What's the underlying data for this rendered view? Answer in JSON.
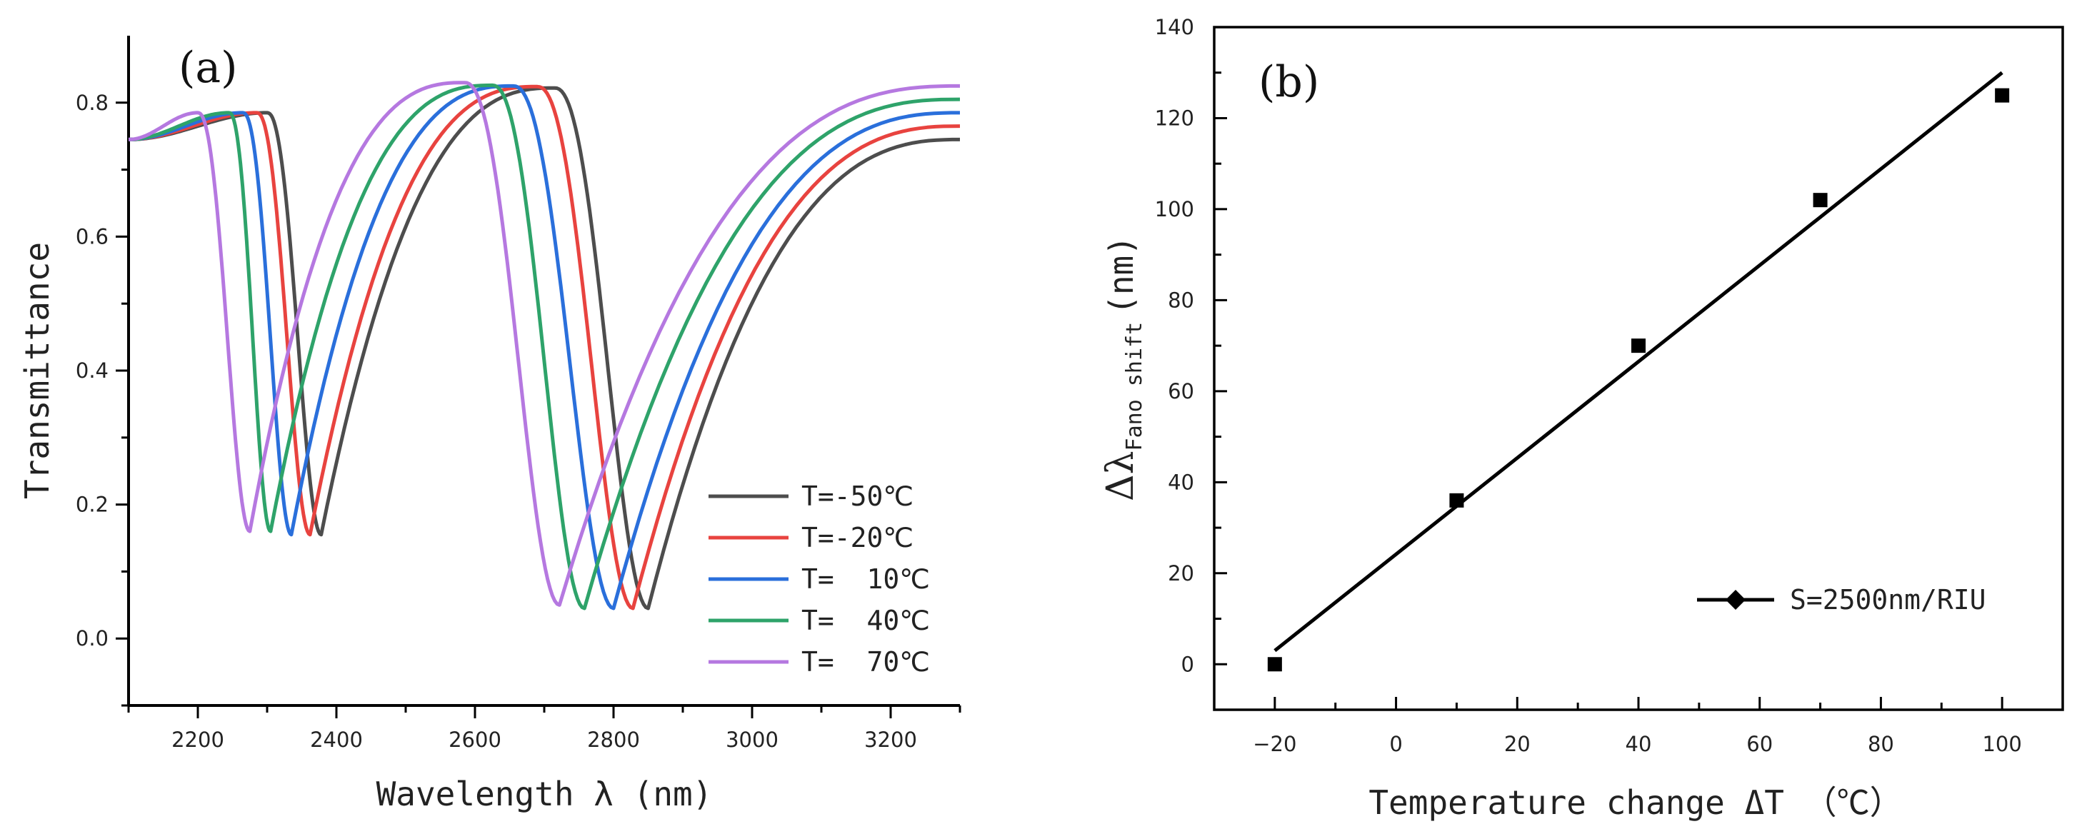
{
  "chart_data": [
    {
      "type": "line",
      "panel_label": "(a)",
      "xlabel": "Wavelength λ (nm)",
      "ylabel": "Transmittance",
      "xlim": [
        2100,
        3300
      ],
      "ylim": [
        -0.1,
        0.9
      ],
      "xticks": [
        2200,
        2400,
        2600,
        2800,
        3000,
        3200
      ],
      "yticks": [
        0.0,
        0.2,
        0.4,
        0.6,
        0.8
      ],
      "ytick_labels": [
        "0.0",
        "0.2",
        "0.4",
        "0.6",
        "0.8"
      ],
      "legend_position": "bottom-right",
      "series": [
        {
          "name": "T=-50℃",
          "color": "#4d4d4d",
          "resonances": [
            {
              "peak_wl": 2300,
              "peak_T": 0.785,
              "dip_wl": 2378,
              "dip_T": 0.155
            },
            {
              "peak_wl": 2715,
              "peak_T": 0.822,
              "dip_wl": 2850,
              "dip_T": 0.045
            }
          ]
        },
        {
          "name": "T=-20℃",
          "color": "#e8433f",
          "resonances": [
            {
              "peak_wl": 2285,
              "peak_T": 0.785,
              "dip_wl": 2362,
              "dip_T": 0.155
            },
            {
              "peak_wl": 2690,
              "peak_T": 0.824,
              "dip_wl": 2828,
              "dip_T": 0.045
            }
          ]
        },
        {
          "name": "T=  10℃",
          "color": "#2a6fdb",
          "resonances": [
            {
              "peak_wl": 2265,
              "peak_T": 0.785,
              "dip_wl": 2335,
              "dip_T": 0.155
            },
            {
              "peak_wl": 2655,
              "peak_T": 0.825,
              "dip_wl": 2800,
              "dip_T": 0.045
            }
          ]
        },
        {
          "name": "T=  40℃",
          "color": "#2ea36a",
          "resonances": [
            {
              "peak_wl": 2245,
              "peak_T": 0.785,
              "dip_wl": 2305,
              "dip_T": 0.16
            },
            {
              "peak_wl": 2625,
              "peak_T": 0.826,
              "dip_wl": 2758,
              "dip_T": 0.045
            }
          ]
        },
        {
          "name": "T=  70℃",
          "color": "#b578e0",
          "resonances": [
            {
              "peak_wl": 2200,
              "peak_T": 0.785,
              "dip_wl": 2275,
              "dip_T": 0.16
            },
            {
              "peak_wl": 2585,
              "peak_T": 0.83,
              "dip_wl": 2722,
              "dip_T": 0.05
            }
          ]
        }
      ],
      "baseline_start": 0.745,
      "end_values": [
        0.745,
        0.765,
        0.785,
        0.805,
        0.825
      ]
    },
    {
      "type": "scatter",
      "panel_label": "(b)",
      "xlabel": "Temperature change ΔT （℃）",
      "ylabel_main": "Δλ",
      "ylabel_sub": "Fano shift",
      "ylabel_unit": "(nm)",
      "xlim": [
        -30,
        110
      ],
      "ylim": [
        -10,
        140
      ],
      "xticks": [
        -20,
        0,
        20,
        40,
        60,
        80,
        100
      ],
      "xtick_labels": [
        "−20",
        "0",
        "20",
        "40",
        "60",
        "80",
        "100"
      ],
      "yticks": [
        0,
        20,
        40,
        60,
        80,
        100,
        120,
        140
      ],
      "points": {
        "x": [
          -20,
          10,
          40,
          70,
          100
        ],
        "y": [
          0,
          36,
          70,
          102,
          125
        ]
      },
      "fit_line": {
        "x": [
          -20,
          100
        ],
        "y": [
          3,
          130
        ]
      },
      "legend_label": "S=2500nm/RIU",
      "legend_position": "bottom-right"
    }
  ]
}
